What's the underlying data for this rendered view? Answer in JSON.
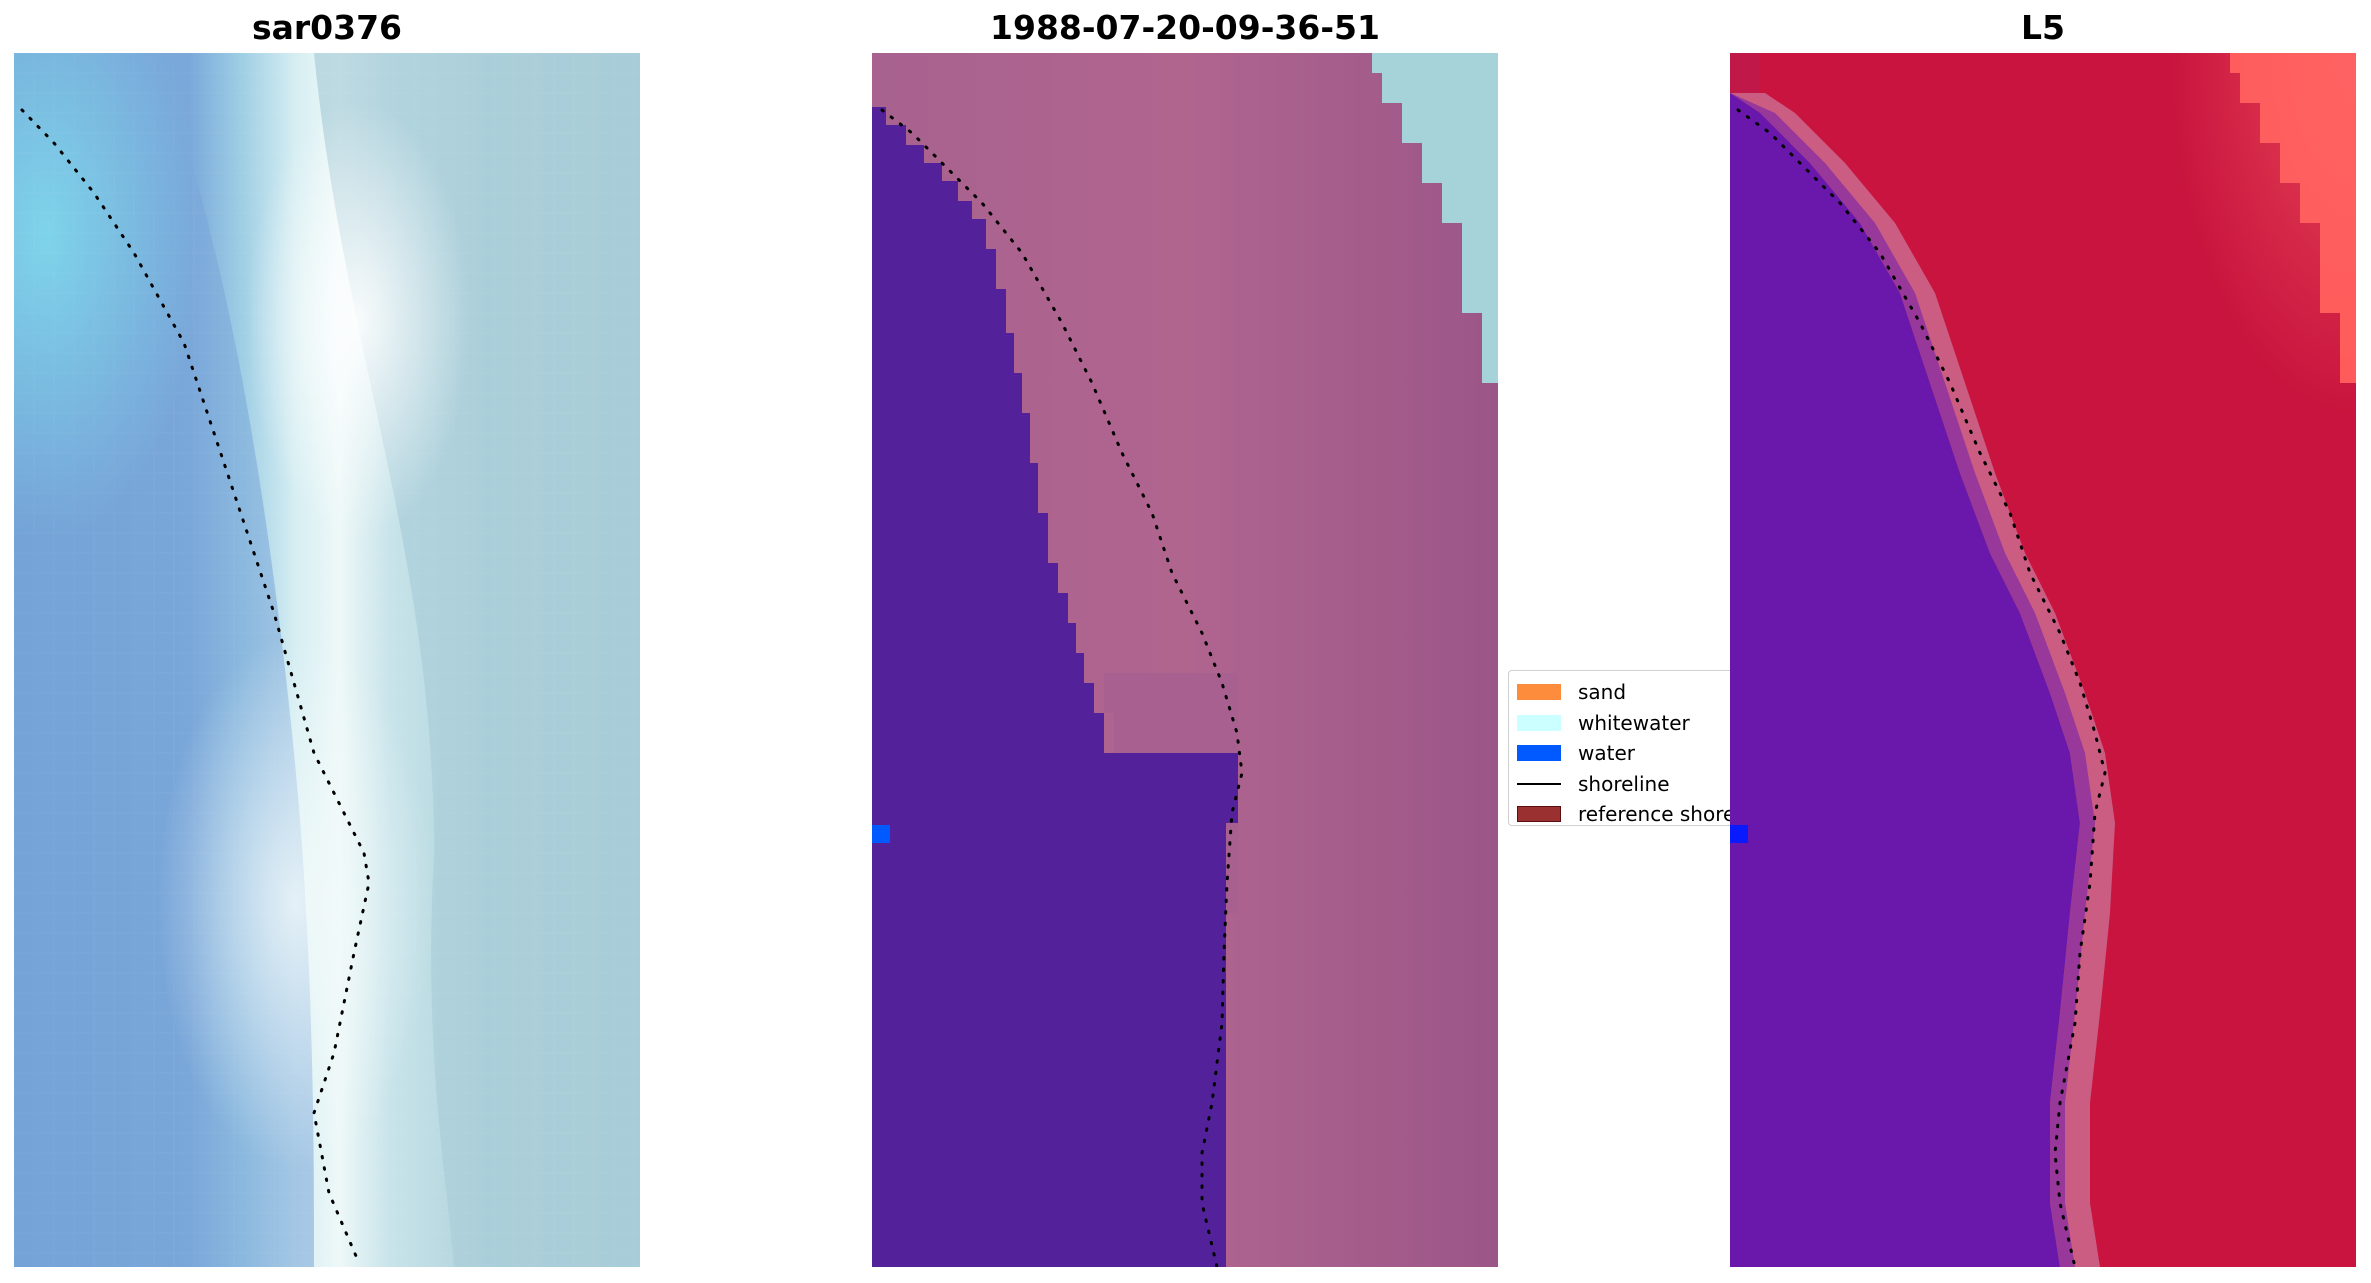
{
  "panels": [
    {
      "title": "sar0376"
    },
    {
      "title": "1988-07-20-09-36-51"
    },
    {
      "title": "L5"
    }
  ],
  "legend": {
    "items": [
      {
        "label": "sand",
        "color": "#fd8d3c",
        "kind": "patch"
      },
      {
        "label": "whitewater",
        "color": "#ccffff",
        "kind": "patch"
      },
      {
        "label": "water",
        "color": "#005aff",
        "kind": "patch"
      },
      {
        "label": "shoreline",
        "color": "#000000",
        "kind": "line"
      },
      {
        "label": "reference shoreline",
        "color": "#9a3030",
        "kind": "patch"
      }
    ]
  },
  "colors": {
    "rgb_water": "#7aa5d8",
    "rgb_surf": "#e4f3f5",
    "rgb_land": "#a8cfd8",
    "class_water": "#53229a",
    "class_land": "#a35a8e",
    "class_corner": "#a8d4dc",
    "mndwi_water": "#6a1ab0",
    "mndwi_land": "#c8143e",
    "mndwi_corner": "#ff5a5a"
  }
}
